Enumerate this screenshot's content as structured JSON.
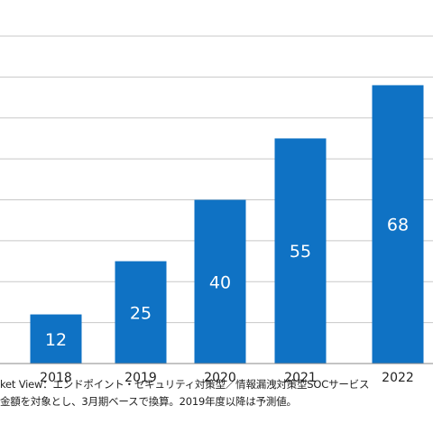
{
  "chart_data": {
    "type": "bar",
    "categories": [
      "2018",
      "2019",
      "2020",
      "2021",
      "2022"
    ],
    "values": [
      12,
      25,
      40,
      55,
      68
    ],
    "title": "",
    "xlabel": "",
    "ylabel": "",
    "ylim": [
      0,
      80
    ],
    "grid": true,
    "bar_color": "#0f72c4",
    "label_color": "#ffffff"
  },
  "footnotes": {
    "line1": "ket View：エンドポイント・セキュリティ対策型／情報漏洩対策型SOCサービス",
    "line2": "金額を対象とし、3月期ベースで換算。2019年度以降は予測値。"
  }
}
